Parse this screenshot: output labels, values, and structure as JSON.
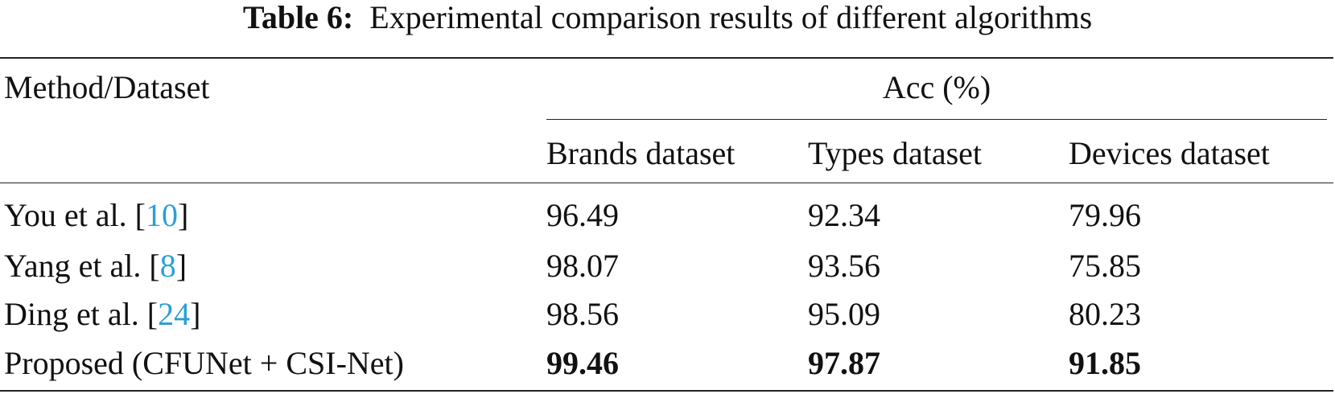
{
  "caption": {
    "label": "Table 6:",
    "text": "Experimental comparison results of different algorithms"
  },
  "table": {
    "header": {
      "method": "Method/Dataset",
      "group": "Acc (%)",
      "columns": [
        "Brands dataset",
        "Types dataset",
        "Devices dataset"
      ]
    },
    "rows": [
      {
        "method": {
          "text": "You et al. [",
          "ref": "10",
          "end": "]"
        },
        "values": [
          "96.49",
          "92.34",
          "79.96"
        ],
        "bold": false
      },
      {
        "method": {
          "text": "Yang et al. [",
          "ref": "8",
          "end": "]"
        },
        "values": [
          "98.07",
          "93.56",
          "75.85"
        ],
        "bold": false
      },
      {
        "method": {
          "text": "Ding et al. [",
          "ref": "24",
          "end": "]"
        },
        "values": [
          "98.56",
          "95.09",
          "80.23"
        ],
        "bold": false
      },
      {
        "method": {
          "text": "Proposed (CFUNet + CSI-Net)"
        },
        "values": [
          "99.46",
          "97.87",
          "91.85"
        ],
        "bold": true
      }
    ]
  }
}
